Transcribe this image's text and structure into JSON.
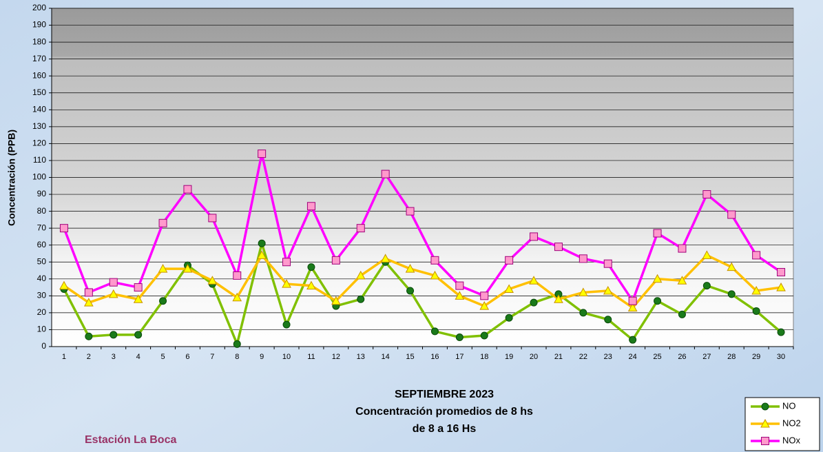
{
  "chart_data": {
    "type": "line",
    "title": "SEPTIEMBRE 2023",
    "subtitle": [
      "Concentración promedios de 8 hs",
      "de 8 a 16 Hs"
    ],
    "annotations": [
      "Estación La Boca"
    ],
    "y_label": "Concentración (PPB)",
    "categories": [
      "1",
      "2",
      "3",
      "4",
      "5",
      "6",
      "7",
      "8",
      "9",
      "10",
      "11",
      "12",
      "13",
      "14",
      "15",
      "16",
      "17",
      "18",
      "19",
      "20",
      "21",
      "22",
      "23",
      "24",
      "25",
      "26",
      "27",
      "28",
      "29",
      "30"
    ],
    "series": [
      {
        "name": "NO",
        "color": "#80c000",
        "marker": "circle",
        "marker_color": "#1a7a1a",
        "values": [
          34,
          6,
          7,
          7,
          27,
          48,
          37,
          1.5,
          61,
          13,
          47,
          24,
          28,
          50,
          33,
          9,
          5.5,
          6.5,
          17,
          26,
          31,
          20,
          16,
          4,
          27,
          19,
          36,
          31,
          21,
          8.5
        ]
      },
      {
        "name": "NO2",
        "color": "#ffc000",
        "marker": "triangle",
        "marker_color": "#ffff00",
        "values": [
          36,
          26,
          31,
          28,
          46,
          46,
          39,
          29,
          54,
          37,
          36,
          27,
          42,
          52,
          46,
          42,
          30,
          24,
          34,
          39,
          28,
          32,
          33,
          23,
          40,
          39,
          54,
          47,
          33,
          35
        ]
      },
      {
        "name": "NOx",
        "color": "#ff00ff",
        "marker": "square",
        "marker_color": "#ff99cc",
        "values": [
          70,
          32,
          38,
          35,
          73,
          93,
          76,
          42,
          114,
          50,
          83,
          51,
          70,
          102,
          80,
          51,
          36,
          30,
          51,
          65,
          59,
          52,
          49,
          27,
          67,
          58,
          90,
          78,
          54,
          44
        ]
      }
    ],
    "ylim": [
      0,
      200
    ],
    "yticks": [
      0,
      10,
      20,
      30,
      40,
      50,
      60,
      70,
      80,
      90,
      100,
      110,
      120,
      130,
      140,
      150,
      160,
      170,
      180,
      190,
      200
    ],
    "grid": true,
    "legend": "bottom-right"
  }
}
